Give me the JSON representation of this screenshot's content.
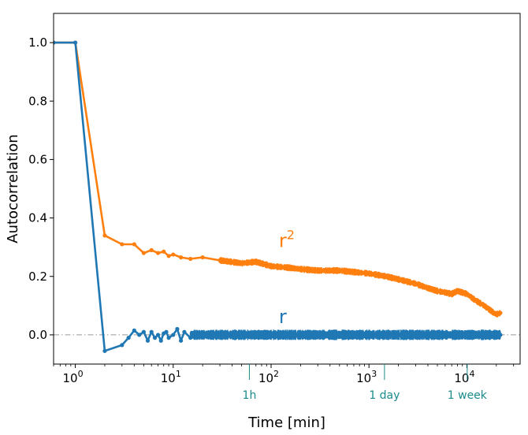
{
  "chart_data": {
    "type": "line",
    "xscale": "log",
    "xlabel": "Time [min]",
    "ylabel": "Autocorrelation",
    "xlim": [
      0.6,
      35000
    ],
    "ylim": [
      -0.1,
      1.1
    ],
    "yticks": [
      0.0,
      0.2,
      0.4,
      0.6,
      0.8,
      1.0
    ],
    "ytick_labels": [
      "0.0",
      "0.2",
      "0.4",
      "0.6",
      "0.8",
      "1.0"
    ],
    "xticks": [
      {
        "value": 1,
        "base": "10",
        "exp": "0"
      },
      {
        "value": 10,
        "base": "10",
        "exp": "1"
      },
      {
        "value": 100,
        "base": "10",
        "exp": "2"
      },
      {
        "value": 1000,
        "base": "10",
        "exp": "3"
      },
      {
        "value": 10000,
        "base": "10",
        "exp": "4"
      }
    ],
    "reference_line": {
      "y": 0.0,
      "style": "dash-dot",
      "color": "#999999"
    },
    "time_markers": [
      {
        "label": "1h",
        "value": 60
      },
      {
        "label": "1 day",
        "value": 1440
      },
      {
        "label": "1 week",
        "value": 10080
      }
    ],
    "marker_color": "#1a8a8a",
    "series": [
      {
        "name": "r²",
        "label_base": "r",
        "label_sup": "2",
        "label_at": [
          120,
          0.3
        ],
        "color": "#ff7f0e",
        "x": [
          0.6,
          1,
          2,
          3,
          4,
          5,
          6,
          7,
          8,
          9,
          10,
          12,
          15,
          20,
          30,
          50,
          70,
          100,
          150,
          200,
          300,
          500,
          700,
          1000,
          1500,
          2000,
          3000,
          4000,
          5000,
          6000,
          7000,
          8000,
          10000,
          12000,
          15000,
          18000,
          20000,
          22000
        ],
        "y": [
          1.0,
          1.0,
          0.34,
          0.31,
          0.31,
          0.28,
          0.29,
          0.28,
          0.285,
          0.27,
          0.275,
          0.265,
          0.26,
          0.265,
          0.255,
          0.245,
          0.25,
          0.235,
          0.23,
          0.225,
          0.22,
          0.22,
          0.215,
          0.21,
          0.2,
          0.19,
          0.175,
          0.16,
          0.15,
          0.145,
          0.14,
          0.15,
          0.14,
          0.12,
          0.1,
          0.08,
          0.07,
          0.075
        ]
      },
      {
        "name": "r",
        "label_base": "r",
        "label_sup": "",
        "label_at": [
          120,
          0.04
        ],
        "color": "#1f77b4",
        "x": [
          0.6,
          1,
          2,
          3,
          3.5,
          4,
          4.5,
          5,
          5.5,
          6,
          6.5,
          7,
          7.5,
          8,
          8.5,
          9,
          10,
          11,
          12,
          13,
          15,
          20,
          30,
          50,
          70,
          100,
          150,
          200,
          300,
          500,
          700,
          1000,
          1500,
          2000,
          3000,
          5000,
          7000,
          10000,
          15000,
          20000,
          22000
        ],
        "y": [
          1.0,
          1.0,
          -0.055,
          -0.035,
          -0.01,
          0.015,
          0.0,
          0.01,
          -0.02,
          0.01,
          -0.01,
          0.0,
          -0.02,
          0.005,
          0.01,
          -0.01,
          0.0,
          0.02,
          -0.02,
          0.01,
          -0.01,
          0.0,
          0.005,
          -0.005,
          0.0,
          0.005,
          -0.005,
          0.0,
          0.005,
          -0.005,
          0.0,
          0.005,
          -0.005,
          0.0,
          0.005,
          -0.005,
          0.0,
          0.005,
          -0.005,
          0.0,
          0.0
        ],
        "noise_amplitude": 0.012
      }
    ]
  }
}
